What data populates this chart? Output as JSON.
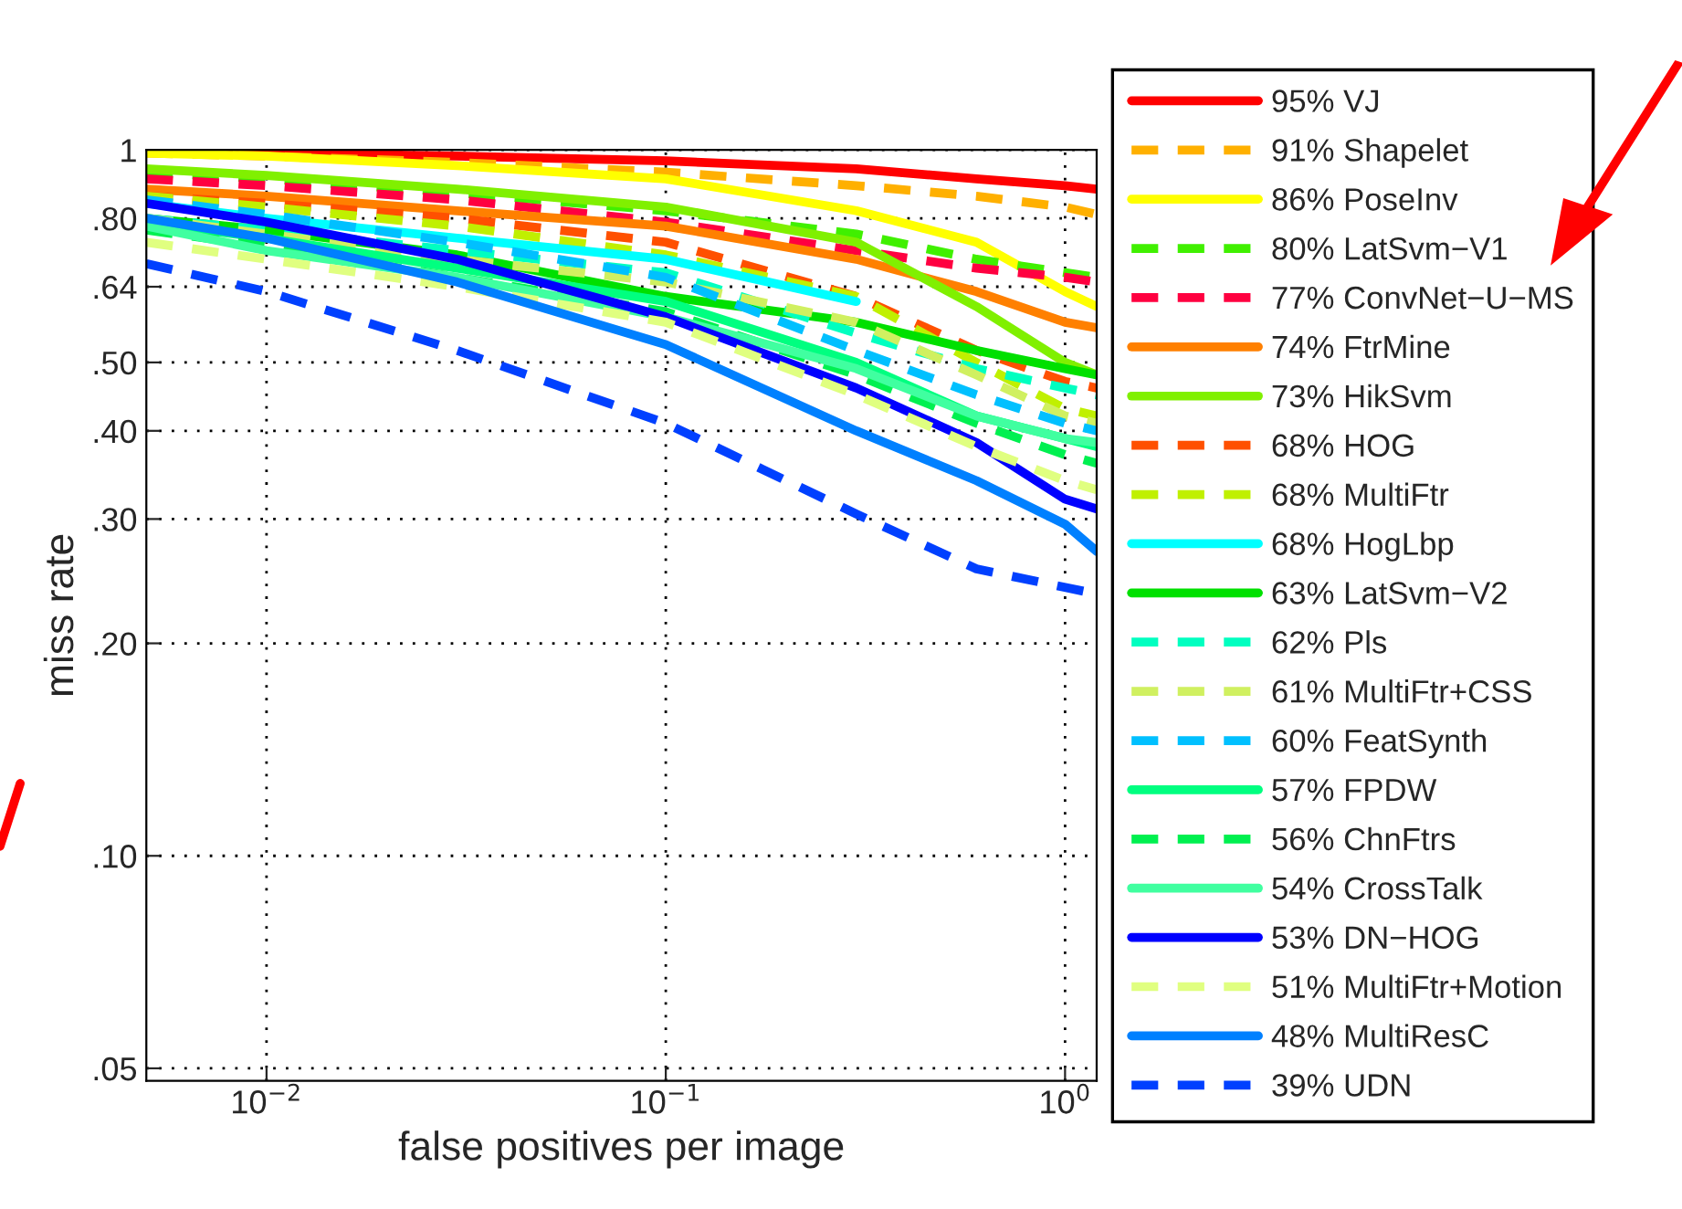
{
  "chart_data": {
    "type": "line",
    "xlabel": "false positives per image",
    "ylabel": "miss rate",
    "x": [
      0.005,
      0.01,
      0.03,
      0.1,
      0.3,
      0.6,
      1.0,
      1.2
    ],
    "log": "xy",
    "grid": true,
    "legend": "right",
    "xlim": [
      0.005,
      1.2
    ],
    "ylim": [
      0.048,
      1
    ],
    "xticks": [
      {
        "value": 0.01,
        "label": "10$^{−2}$"
      },
      {
        "value": 0.1,
        "label": "10$^{−1}$"
      },
      {
        "value": 1,
        "label": "10$^{0}$"
      }
    ],
    "yticks": [
      {
        "value": 0.05,
        "label": ".05"
      },
      {
        "value": 0.1,
        "label": ".10"
      },
      {
        "value": 0.2,
        "label": ".20"
      },
      {
        "value": 0.3,
        "label": ".30"
      },
      {
        "value": 0.4,
        "label": ".40"
      },
      {
        "value": 0.5,
        "label": ".50"
      },
      {
        "value": 0.64,
        "label": ".64"
      },
      {
        "value": 0.8,
        "label": ".80"
      },
      {
        "value": 1,
        "label": "1"
      }
    ],
    "series": [
      {
        "name": "95% VJ",
        "color": "#ff0000",
        "line_style": "solid",
        "values": [
          1.0,
          0.99,
          0.98,
          0.965,
          0.94,
          0.91,
          0.89,
          0.88
        ]
      },
      {
        "name": "91% Shapelet",
        "color": "#ffb000",
        "line_style": "dashed",
        "values": [
          0.99,
          0.98,
          0.96,
          0.93,
          0.89,
          0.86,
          0.83,
          0.81
        ]
      },
      {
        "name": "86% PoseInv",
        "color": "#ffff00",
        "line_style": "solid",
        "values": [
          0.99,
          0.98,
          0.95,
          0.91,
          0.82,
          0.74,
          0.63,
          0.6
        ]
      },
      {
        "name": "80% LatSvm−V1",
        "color": "#40f000",
        "line_style": "dashed",
        "values": [
          0.93,
          0.91,
          0.87,
          0.82,
          0.76,
          0.7,
          0.67,
          0.66
        ]
      },
      {
        "name": "77% ConvNet−U−MS",
        "color": "#ff0040",
        "line_style": "dashed",
        "values": [
          0.91,
          0.89,
          0.85,
          0.79,
          0.72,
          0.68,
          0.66,
          0.65
        ]
      },
      {
        "name": "74% FtrMine",
        "color": "#ff8000",
        "line_style": "solid",
        "values": [
          0.88,
          0.86,
          0.82,
          0.78,
          0.7,
          0.63,
          0.57,
          0.56
        ]
      },
      {
        "name": "73% HikSvm",
        "color": "#80f000",
        "line_style": "solid",
        "values": [
          0.94,
          0.92,
          0.88,
          0.83,
          0.74,
          0.6,
          0.5,
          0.48
        ]
      },
      {
        "name": "68% HOG",
        "color": "#ff5000",
        "line_style": "dashed",
        "values": [
          0.86,
          0.84,
          0.8,
          0.74,
          0.62,
          0.52,
          0.47,
          0.46
        ]
      },
      {
        "name": "68% MultiFtr",
        "color": "#c0f000",
        "line_style": "dashed",
        "values": [
          0.86,
          0.83,
          0.78,
          0.71,
          0.62,
          0.5,
          0.43,
          0.42
        ]
      },
      {
        "name": "68% HogLbp",
        "color": "#00ffff",
        "line_style": "solid",
        "x": [
          0.005,
          0.01,
          0.03,
          0.1,
          0.3
        ],
        "values": [
          0.84,
          0.8,
          0.75,
          0.7,
          0.61
        ]
      },
      {
        "name": "63% LatSvm−V2",
        "color": "#00e000",
        "line_style": "solid",
        "values": [
          0.8,
          0.77,
          0.71,
          0.62,
          0.57,
          0.52,
          0.49,
          0.48
        ]
      },
      {
        "name": "62% Pls",
        "color": "#00ffc0",
        "line_style": "dashed",
        "values": [
          0.8,
          0.77,
          0.72,
          0.67,
          0.55,
          0.49,
          0.46,
          0.45
        ]
      },
      {
        "name": "61% MultiFtr+CSS",
        "color": "#d0f060",
        "line_style": "dashed",
        "values": [
          0.8,
          0.76,
          0.7,
          0.65,
          0.57,
          0.48,
          0.42,
          0.41
        ]
      },
      {
        "name": "60% FeatSynth",
        "color": "#00c0ff",
        "line_style": "dashed",
        "values": [
          0.85,
          0.81,
          0.74,
          0.66,
          0.52,
          0.45,
          0.41,
          0.4
        ]
      },
      {
        "name": "57% FPDW",
        "color": "#00ff80",
        "line_style": "solid",
        "values": [
          0.79,
          0.75,
          0.68,
          0.61,
          0.5,
          0.42,
          0.39,
          0.38
        ]
      },
      {
        "name": "56% ChnFtrs",
        "color": "#00f050",
        "line_style": "dashed",
        "values": [
          0.77,
          0.73,
          0.66,
          0.59,
          0.48,
          0.41,
          0.37,
          0.36
        ]
      },
      {
        "name": "54% CrossTalk",
        "color": "#40ffa0",
        "line_style": "solid",
        "values": [
          0.78,
          0.72,
          0.66,
          0.58,
          0.49,
          0.42,
          0.39,
          0.385
        ]
      },
      {
        "name": "53% DN−HOG",
        "color": "#0000ff",
        "line_style": "solid",
        "values": [
          0.84,
          0.79,
          0.7,
          0.58,
          0.46,
          0.385,
          0.32,
          0.31
        ]
      },
      {
        "name": "51% MultiFtr+Motion",
        "color": "#e0ff80",
        "line_style": "dashed",
        "values": [
          0.74,
          0.7,
          0.64,
          0.57,
          0.45,
          0.38,
          0.34,
          0.33
        ]
      },
      {
        "name": "48% MultiResC",
        "color": "#0080ff",
        "line_style": "solid",
        "values": [
          0.8,
          0.75,
          0.65,
          0.53,
          0.4,
          0.34,
          0.295,
          0.27
        ]
      },
      {
        "name": "39% UDN",
        "color": "#0040ff",
        "line_style": "dashed",
        "values": [
          0.69,
          0.63,
          0.52,
          0.41,
          0.305,
          0.255,
          0.24,
          0.235
        ]
      }
    ]
  }
}
